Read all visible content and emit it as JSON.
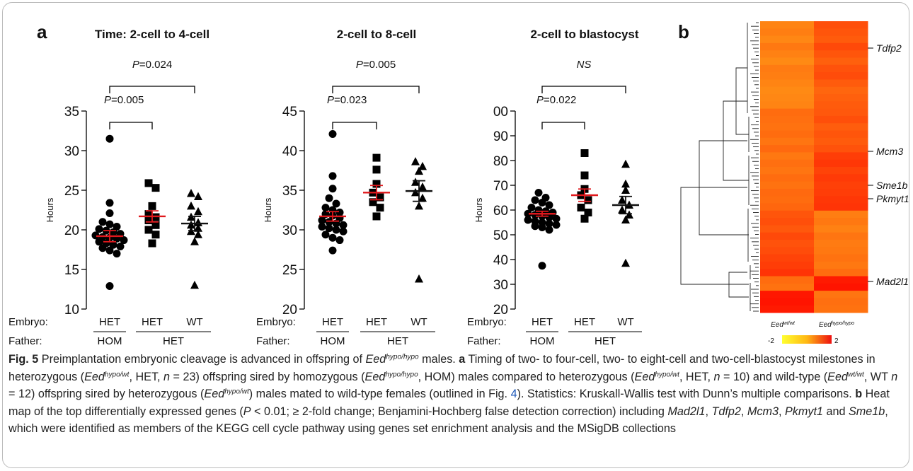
{
  "panel_a": {
    "label": "a",
    "embryo_label": "Embryo:",
    "father_label": "Father:",
    "groups": [
      "HET",
      "HET",
      "WT"
    ],
    "father_groups": [
      "HOM",
      "HET"
    ]
  },
  "panel_b": {
    "label": "b",
    "genes": [
      "Tdfp2",
      "Mcm3",
      "Sme1b",
      "Pkmyt1",
      "Mad2l1"
    ],
    "column_labels": [
      {
        "base": "Eed",
        "sup": "wt/wt"
      },
      {
        "base": "Eed",
        "sup": "hypo/hypo"
      }
    ],
    "scale_min": "-2",
    "scale_max": "2"
  },
  "chart_data": [
    {
      "type": "scatter",
      "title": "Time: 2-cell to 4-cell",
      "ylabel": "Hours",
      "ylim": [
        10,
        35
      ],
      "yticks": [
        "10",
        "15",
        "20",
        "25",
        "30",
        "35"
      ],
      "categories": [
        "HET",
        "HET",
        "WT"
      ],
      "markers": [
        "circle",
        "square",
        "triangle"
      ],
      "series": [
        {
          "values": [
            31.5,
            23.4,
            22.1,
            21.0,
            20.7,
            20.4,
            20.1,
            19.9,
            19.7,
            19.5,
            19.3,
            19.1,
            19.0,
            18.9,
            18.7,
            18.5,
            18.3,
            18.1,
            17.9,
            17.7,
            17.4,
            17.0,
            12.9
          ]
        },
        {
          "values": [
            25.9,
            25.3,
            23.0,
            22.0,
            21.6,
            21.2,
            20.6,
            20.0,
            19.4,
            18.3
          ]
        },
        {
          "values": [
            24.6,
            24.2,
            23.0,
            22.3,
            21.6,
            20.9,
            20.6,
            20.2,
            19.8,
            19.4,
            18.5,
            13.0
          ]
        }
      ],
      "means": [
        19.2,
        21.7,
        20.8
      ],
      "sems": [
        0.7,
        0.7,
        0.9
      ],
      "comparisons": [
        {
          "from": 0,
          "to": 1,
          "label_pre": "P",
          "label_post": "=0.005"
        },
        {
          "from": 0,
          "to": 2,
          "label_pre": "P",
          "label_post": "=0.024"
        }
      ]
    },
    {
      "type": "scatter",
      "title": "2-cell to 8-cell",
      "ylabel": "Hours",
      "ylim": [
        20,
        45
      ],
      "yticks": [
        "20",
        "25",
        "30",
        "35",
        "40",
        "45"
      ],
      "categories": [
        "HET",
        "HET",
        "WT"
      ],
      "markers": [
        "circle",
        "square",
        "triangle"
      ],
      "series": [
        {
          "values": [
            42.1,
            36.8,
            35.2,
            34.0,
            33.3,
            32.8,
            32.5,
            32.2,
            32.0,
            31.8,
            31.5,
            31.2,
            31.0,
            30.8,
            30.6,
            30.4,
            30.2,
            30.0,
            29.8,
            29.4,
            29.0,
            28.7,
            27.4
          ]
        },
        {
          "values": [
            39.1,
            37.6,
            35.8,
            34.7,
            34.1,
            33.5,
            32.8,
            31.7
          ]
        },
        {
          "values": [
            38.6,
            38.0,
            37.4,
            36.0,
            35.4,
            34.7,
            34.0,
            33.0,
            23.8
          ]
        }
      ],
      "means": [
        31.7,
        34.7,
        34.9
      ],
      "sems": [
        0.6,
        0.9,
        1.3
      ],
      "comparisons": [
        {
          "from": 0,
          "to": 1,
          "label_pre": "P",
          "label_post": "=0.023"
        },
        {
          "from": 0,
          "to": 2,
          "label_pre": "P",
          "label_post": "=0.005"
        }
      ]
    },
    {
      "type": "scatter",
      "title": "2-cell to blastocyst",
      "ylabel": "Hours",
      "ylim": [
        20,
        100
      ],
      "yticks": [
        "20",
        "30",
        "40",
        "50",
        "60",
        "70",
        "80",
        "90",
        "00"
      ],
      "categories": [
        "HET",
        "HET",
        "WT"
      ],
      "markers": [
        "circle",
        "square",
        "triangle"
      ],
      "series": [
        {
          "values": [
            67.0,
            65.0,
            64.0,
            63.0,
            62.0,
            61.0,
            60.0,
            59.5,
            59.0,
            58.5,
            58.0,
            57.5,
            57.0,
            56.5,
            56.0,
            55.5,
            55.0,
            54.5,
            54.0,
            53.5,
            53.0,
            52.0,
            37.5
          ]
        },
        {
          "values": [
            83.0,
            74.0,
            68.5,
            66.0,
            64.0,
            61.0,
            59.0,
            56.5
          ]
        },
        {
          "values": [
            78.5,
            70.5,
            68.0,
            64.0,
            62.0,
            60.0,
            58.0,
            56.0,
            38.5
          ]
        }
      ],
      "means": [
        58.5,
        66.0,
        62.0
      ],
      "sems": [
        1.0,
        2.5,
        3.5
      ],
      "comparisons": [
        {
          "from": 0,
          "to": 1,
          "label_pre": "P",
          "label_post": "=0.022"
        },
        {
          "from": 0,
          "to": 2,
          "label_pre": "NS",
          "label_post": ""
        }
      ]
    },
    {
      "type": "heatmap",
      "columns": [
        {
          "base": "Eed",
          "sup": "wt/wt"
        },
        {
          "base": "Eed",
          "sup": "hypo/hypo"
        }
      ],
      "color_range": [
        -2,
        2
      ],
      "row_bands": [
        {
          "values": [
            0.1,
            1.0
          ]
        },
        {
          "values": [
            0.2,
            0.9
          ]
        },
        {
          "values": [
            0.05,
            0.8
          ]
        },
        {
          "values": [
            0.3,
            1.1
          ]
        },
        {
          "values": [
            0.15,
            0.9
          ]
        },
        {
          "values": [
            0.0,
            0.7
          ]
        },
        {
          "values": [
            0.25,
            0.95
          ]
        },
        {
          "values": [
            0.2,
            1.05
          ]
        },
        {
          "values": [
            0.1,
            0.8
          ]
        },
        {
          "values": [
            0.0,
            0.6
          ]
        },
        {
          "values": [
            0.05,
            0.7
          ]
        },
        {
          "values": [
            0.1,
            0.8
          ]
        },
        {
          "values": [
            0.5,
            0.85
          ]
        },
        {
          "values": [
            0.45,
            1.0
          ]
        },
        {
          "values": [
            0.4,
            0.75
          ]
        },
        {
          "values": [
            0.5,
            0.9
          ]
        },
        {
          "values": [
            0.35,
            0.8
          ]
        },
        {
          "values": [
            0.55,
            0.95
          ]
        },
        {
          "values": [
            0.3,
            1.3
          ]
        },
        {
          "values": [
            0.45,
            1.4
          ]
        },
        {
          "values": [
            0.35,
            1.2
          ]
        },
        {
          "values": [
            0.5,
            1.35
          ]
        },
        {
          "values": [
            0.4,
            1.25
          ]
        },
        {
          "values": [
            0.55,
            1.3
          ]
        },
        {
          "values": [
            0.5,
            1.4
          ]
        },
        {
          "values": [
            0.6,
            1.45
          ]
        },
        {
          "values": [
            0.9,
            0.2
          ]
        },
        {
          "values": [
            1.0,
            0.3
          ]
        },
        {
          "values": [
            0.85,
            0.15
          ]
        },
        {
          "values": [
            1.1,
            0.35
          ]
        },
        {
          "values": [
            0.95,
            0.25
          ]
        },
        {
          "values": [
            1.05,
            0.3
          ]
        },
        {
          "values": [
            1.2,
            0.4
          ]
        },
        {
          "values": [
            1.3,
            0.3
          ]
        },
        {
          "values": [
            1.45,
            0.5
          ]
        },
        {
          "values": [
            0.5,
            1.9
          ]
        },
        {
          "values": [
            0.4,
            2.0
          ]
        },
        {
          "values": [
            1.95,
            0.35
          ]
        },
        {
          "values": [
            2.0,
            0.45
          ]
        },
        {
          "values": [
            1.9,
            0.4
          ]
        }
      ]
    }
  ]
}
